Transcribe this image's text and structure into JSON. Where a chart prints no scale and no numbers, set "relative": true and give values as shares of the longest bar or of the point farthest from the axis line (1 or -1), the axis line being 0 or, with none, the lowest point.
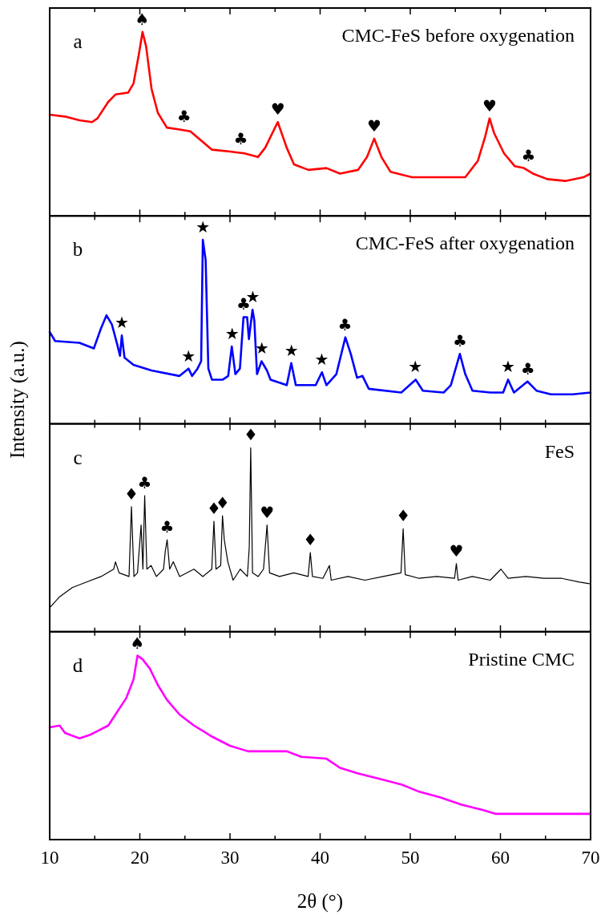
{
  "chart_data": [
    {
      "type": "line",
      "relative": true,
      "xlim": [
        10,
        70
      ],
      "xticks": [
        10,
        {
          "value": 15,
          "label": null
        },
        20,
        {
          "value": 25,
          "label": null
        },
        30,
        {
          "value": 35,
          "label": null
        },
        40,
        {
          "value": 45,
          "label": null
        },
        50,
        {
          "value": 55,
          "label": null
        },
        60,
        {
          "value": 65,
          "label": null
        },
        70
      ],
      "tick_labels": false,
      "annotations": [
        "a",
        "CMC-FeS before oxygenation",
        {
          "text": "♠",
          "x": 20.26,
          "y": 1.0
        },
        {
          "text": "♣",
          "x": 24.9,
          "y": 0.47
        },
        {
          "text": "♣",
          "x": 31.2,
          "y": 0.35
        },
        {
          "text": "♥",
          "x": 35.31,
          "y": 0.51
        },
        {
          "text": "♥",
          "x": 46.0,
          "y": 0.42
        },
        {
          "text": "♥",
          "x": 58.79,
          "y": 0.53
        },
        {
          "text": "♣",
          "x": 63.1,
          "y": 0.26
        }
      ],
      "series": [
        {
          "color": "#ff0000",
          "x": [
            10.0,
            11.7,
            13.3,
            14.7,
            15.3,
            16.5,
            17.3,
            18.7,
            19.3,
            19.9,
            20.3,
            20.7,
            21.3,
            22.0,
            23.0,
            24.4,
            25.6,
            26.8,
            28.0,
            30.0,
            31.6,
            33.1,
            33.9,
            35.3,
            36.3,
            37.1,
            38.7,
            40.7,
            42.2,
            44.2,
            45.2,
            46.0,
            46.8,
            47.8,
            50.2,
            52.9,
            56.1,
            57.5,
            58.3,
            58.8,
            59.3,
            60.4,
            61.6,
            62.6,
            63.6,
            65.2,
            67.2,
            69.2,
            70.0
          ],
          "values": [
            0.55,
            0.54,
            0.52,
            0.51,
            0.53,
            0.62,
            0.66,
            0.67,
            0.72,
            0.88,
            1.0,
            0.92,
            0.69,
            0.56,
            0.48,
            0.47,
            0.46,
            0.41,
            0.36,
            0.35,
            0.34,
            0.32,
            0.37,
            0.51,
            0.37,
            0.28,
            0.25,
            0.26,
            0.23,
            0.25,
            0.32,
            0.42,
            0.32,
            0.24,
            0.21,
            0.21,
            0.21,
            0.3,
            0.43,
            0.53,
            0.45,
            0.34,
            0.27,
            0.26,
            0.23,
            0.2,
            0.19,
            0.21,
            0.23
          ]
        }
      ]
    },
    {
      "type": "line",
      "relative": true,
      "ylabel": "Intensity (a.u.)",
      "xlim": [
        10,
        70
      ],
      "xticks": [
        10,
        {
          "value": 15,
          "label": null
        },
        20,
        {
          "value": 25,
          "label": null
        },
        30,
        {
          "value": 35,
          "label": null
        },
        40,
        {
          "value": 45,
          "label": null
        },
        50,
        {
          "value": 55,
          "label": null
        },
        60,
        {
          "value": 65,
          "label": null
        },
        70
      ],
      "tick_labels": false,
      "annotations": [
        "b",
        "CMC-FeS after oxygenation",
        {
          "text": "★",
          "x": 18.0,
          "y": 0.48
        },
        {
          "text": "★",
          "x": 25.4,
          "y": 0.3
        },
        {
          "text": "★",
          "x": 26.99,
          "y": 1.0
        },
        {
          "text": "★",
          "x": 30.24,
          "y": 0.42
        },
        {
          "text": "♣",
          "x": 31.5,
          "y": 0.58
        },
        {
          "text": "★",
          "x": 32.53,
          "y": 0.62
        },
        {
          "text": "★",
          "x": 33.52,
          "y": 0.34
        },
        {
          "text": "★",
          "x": 36.81,
          "y": 0.33
        },
        {
          "text": "★",
          "x": 40.17,
          "y": 0.28
        },
        {
          "text": "♣",
          "x": 42.75,
          "y": 0.47
        },
        {
          "text": "★",
          "x": 50.55,
          "y": 0.24
        },
        {
          "text": "♣",
          "x": 55.51,
          "y": 0.38
        },
        {
          "text": "★",
          "x": 60.85,
          "y": 0.24
        },
        {
          "text": "♣",
          "x": 63.04,
          "y": 0.23
        }
      ],
      "series": [
        {
          "color": "#0000ff",
          "x": [
            10.0,
            10.6,
            13.3,
            14.9,
            15.7,
            16.3,
            16.9,
            17.5,
            17.8,
            18.0,
            18.3,
            19.3,
            21.3,
            24.4,
            25.4,
            25.8,
            26.4,
            26.8,
            26.99,
            27.3,
            27.6,
            28.0,
            29.2,
            29.8,
            30.2,
            30.6,
            31.1,
            31.5,
            31.9,
            32.1,
            32.5,
            32.7,
            33.0,
            33.5,
            34.1,
            34.5,
            36.3,
            36.8,
            37.3,
            39.5,
            40.2,
            40.7,
            41.8,
            42.8,
            43.4,
            44.1,
            44.7,
            45.4,
            49.0,
            50.6,
            51.4,
            53.7,
            54.5,
            55.5,
            56.1,
            56.9,
            58.9,
            60.3,
            60.85,
            61.5,
            63.0,
            64.0,
            65.6,
            68.0,
            70.0
          ],
          "values": [
            0.5,
            0.45,
            0.44,
            0.41,
            0.52,
            0.59,
            0.54,
            0.43,
            0.37,
            0.48,
            0.36,
            0.32,
            0.29,
            0.26,
            0.3,
            0.26,
            0.3,
            0.34,
            1.0,
            0.89,
            0.3,
            0.24,
            0.24,
            0.26,
            0.42,
            0.27,
            0.3,
            0.58,
            0.58,
            0.46,
            0.62,
            0.56,
            0.27,
            0.34,
            0.29,
            0.24,
            0.21,
            0.33,
            0.21,
            0.21,
            0.28,
            0.21,
            0.27,
            0.47,
            0.38,
            0.25,
            0.26,
            0.19,
            0.17,
            0.24,
            0.18,
            0.17,
            0.21,
            0.38,
            0.27,
            0.18,
            0.17,
            0.17,
            0.24,
            0.17,
            0.23,
            0.18,
            0.16,
            0.16,
            0.17
          ]
        }
      ]
    },
    {
      "type": "line",
      "relative": true,
      "xlim": [
        10,
        70
      ],
      "xticks": [
        10,
        {
          "value": 15,
          "label": null
        },
        20,
        {
          "value": 25,
          "label": null
        },
        30,
        {
          "value": 35,
          "label": null
        },
        40,
        {
          "value": 45,
          "label": null
        },
        50,
        {
          "value": 55,
          "label": null
        },
        60,
        {
          "value": 65,
          "label": null
        },
        70
      ],
      "tick_labels": false,
      "annotations": [
        "c",
        "FeS",
        {
          "text": "♦",
          "x": 19.07,
          "y": 0.68
        },
        {
          "text": "♣",
          "x": 20.54,
          "y": 0.74
        },
        {
          "text": "♣",
          "x": 23.03,
          "y": 0.5
        },
        {
          "text": "♦",
          "x": 28.22,
          "y": 0.6
        },
        {
          "text": "♦",
          "x": 29.17,
          "y": 0.63
        },
        {
          "text": "♦",
          "x": 32.3,
          "y": 1.0
        },
        {
          "text": "♥",
          "x": 34.11,
          "y": 0.58
        },
        {
          "text": "♦",
          "x": 38.91,
          "y": 0.43
        },
        {
          "text": "♦",
          "x": 49.21,
          "y": 0.56
        },
        {
          "text": "♥",
          "x": 55.11,
          "y": 0.37
        }
      ],
      "series": [
        {
          "color": "#000000",
          "x": [
            10.0,
            11.1,
            12.5,
            14.1,
            15.7,
            17.1,
            17.3,
            17.7,
            18.8,
            19.07,
            19.35,
            19.74,
            20.14,
            20.34,
            20.54,
            20.78,
            21.25,
            21.84,
            22.63,
            22.83,
            23.03,
            23.31,
            23.71,
            24.42,
            26.0,
            26.99,
            27.98,
            28.22,
            28.45,
            28.97,
            29.17,
            29.37,
            29.76,
            30.35,
            31.14,
            31.93,
            32.14,
            32.3,
            32.5,
            33.13,
            33.72,
            34.11,
            34.39,
            35.49,
            37.09,
            38.67,
            38.91,
            39.15,
            40.31,
            41.03,
            41.23,
            43.08,
            44.97,
            46.99,
            48.97,
            49.21,
            49.44,
            50.97,
            52.94,
            54.91,
            55.11,
            55.31,
            56.88,
            58.87,
            60.06,
            60.85,
            62.83,
            64.81,
            66.8,
            68.78,
            70.0
          ],
          "values": [
            0.13,
            0.19,
            0.24,
            0.27,
            0.3,
            0.34,
            0.38,
            0.32,
            0.3,
            0.68,
            0.3,
            0.32,
            0.58,
            0.34,
            0.74,
            0.34,
            0.36,
            0.3,
            0.34,
            0.44,
            0.5,
            0.34,
            0.38,
            0.3,
            0.34,
            0.3,
            0.34,
            0.6,
            0.34,
            0.36,
            0.63,
            0.5,
            0.38,
            0.28,
            0.34,
            0.3,
            0.46,
            1.0,
            0.32,
            0.3,
            0.34,
            0.58,
            0.32,
            0.3,
            0.32,
            0.3,
            0.43,
            0.3,
            0.29,
            0.36,
            0.28,
            0.3,
            0.28,
            0.3,
            0.32,
            0.56,
            0.31,
            0.29,
            0.3,
            0.29,
            0.37,
            0.28,
            0.3,
            0.28,
            0.34,
            0.29,
            0.3,
            0.29,
            0.29,
            0.27,
            0.26
          ]
        }
      ]
    },
    {
      "type": "line",
      "relative": true,
      "xlabel": "2θ (°)",
      "xlim": [
        10,
        70
      ],
      "xticks": [
        10,
        {
          "value": 15,
          "label": null
        },
        20,
        {
          "value": 25,
          "label": null
        },
        30,
        {
          "value": 35,
          "label": null
        },
        40,
        {
          "value": 45,
          "label": null
        },
        50,
        {
          "value": 55,
          "label": null
        },
        60,
        {
          "value": 65,
          "label": null
        },
        70
      ],
      "tick_labels": "x",
      "annotations": [
        "d",
        "Pristine CMC",
        {
          "text": "♠",
          "x": 19.74,
          "y": 1.0
        }
      ],
      "series": [
        {
          "color": "#ff00ff",
          "x": [
            10.0,
            11.1,
            11.7,
            13.3,
            14.5,
            15.3,
            16.5,
            17.3,
            18.5,
            19.3,
            19.74,
            20.3,
            21.1,
            22.0,
            23.0,
            24.4,
            26.0,
            28.0,
            30.0,
            32.0,
            33.9,
            36.3,
            37.9,
            40.7,
            42.2,
            44.2,
            46.6,
            49.0,
            51.0,
            53.3,
            55.7,
            58.1,
            59.5,
            61.6,
            64.8,
            70.0
          ],
          "values": [
            0.61,
            0.62,
            0.58,
            0.55,
            0.57,
            0.59,
            0.62,
            0.68,
            0.77,
            0.87,
            1.0,
            0.98,
            0.93,
            0.84,
            0.76,
            0.68,
            0.62,
            0.56,
            0.51,
            0.48,
            0.48,
            0.48,
            0.45,
            0.44,
            0.39,
            0.36,
            0.33,
            0.3,
            0.26,
            0.23,
            0.19,
            0.16,
            0.14,
            0.14,
            0.14,
            0.14
          ]
        }
      ]
    }
  ]
}
